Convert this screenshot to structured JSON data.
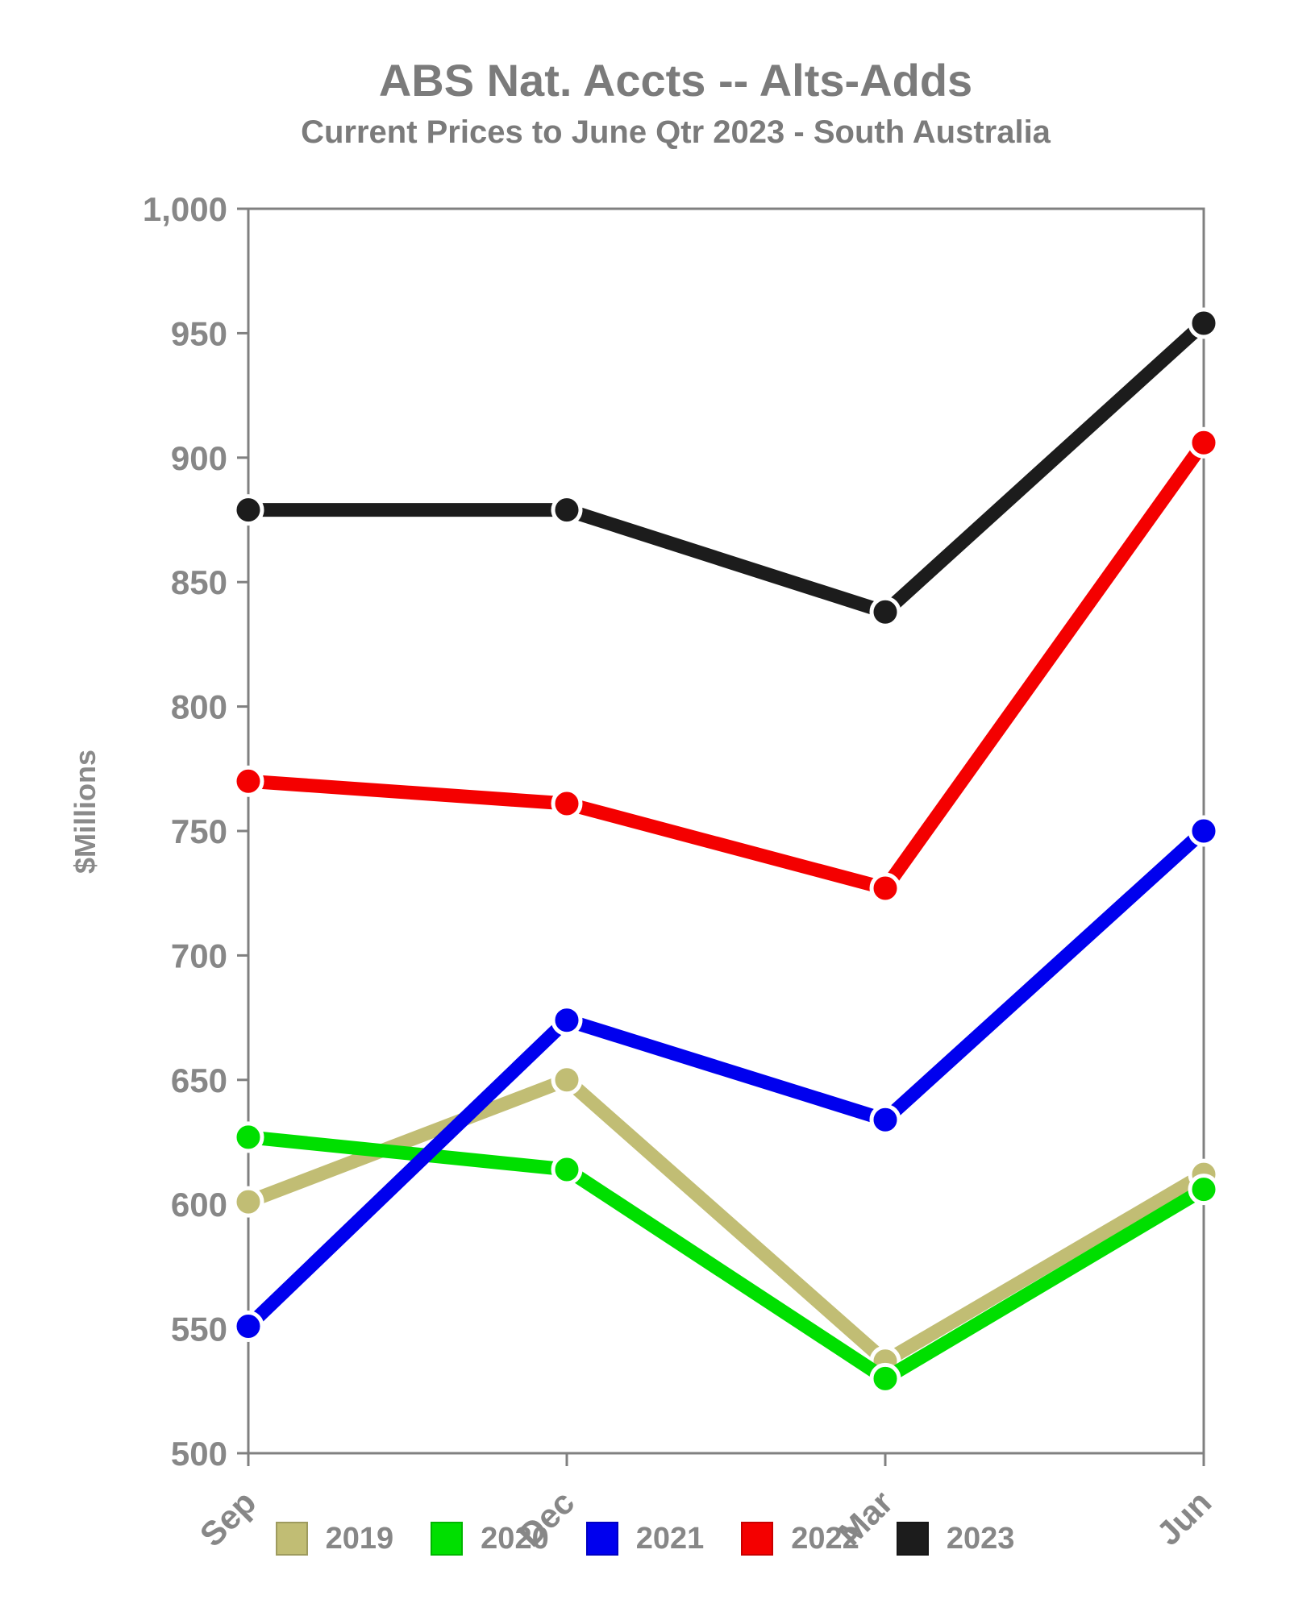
{
  "header": {
    "title": "ABS Nat. Accts -- Alts-Adds",
    "subtitle": "Current Prices to June Qtr 2023 - South Australia"
  },
  "chart_data": {
    "type": "line",
    "title": "ABS Nat. Accts -- Alts-Adds",
    "subtitle": "Current Prices to June Qtr 2023 - South Australia",
    "xlabel": "",
    "ylabel": "$Millions",
    "categories": [
      "Sep",
      "Dec",
      "Mar",
      "Jun"
    ],
    "series": [
      {
        "name": "2019",
        "color": "#c1bd74",
        "values": [
          601,
          650,
          537,
          612
        ]
      },
      {
        "name": "2020",
        "color": "#00df00",
        "values": [
          627,
          614,
          530,
          606
        ]
      },
      {
        "name": "2021",
        "color": "#0000ee",
        "values": [
          551,
          674,
          634,
          750
        ]
      },
      {
        "name": "2022",
        "color": "#f40000",
        "values": [
          770,
          761,
          727,
          906
        ]
      },
      {
        "name": "2023",
        "color": "#1c1c1c",
        "values": [
          879,
          879,
          838,
          954
        ]
      }
    ],
    "ylim": [
      500,
      1000
    ],
    "ytick_step": 50,
    "y_tick_labels": [
      "500",
      "550",
      "600",
      "650",
      "700",
      "750",
      "800",
      "850",
      "900",
      "950",
      "1,000"
    ],
    "grid": false,
    "legend_position": "bottom",
    "axis_color": "#808080",
    "tick_label_color": "#878787",
    "title_color": "#7b7b7b",
    "marker": "circle",
    "marker_edge_color": "#ffffff"
  }
}
